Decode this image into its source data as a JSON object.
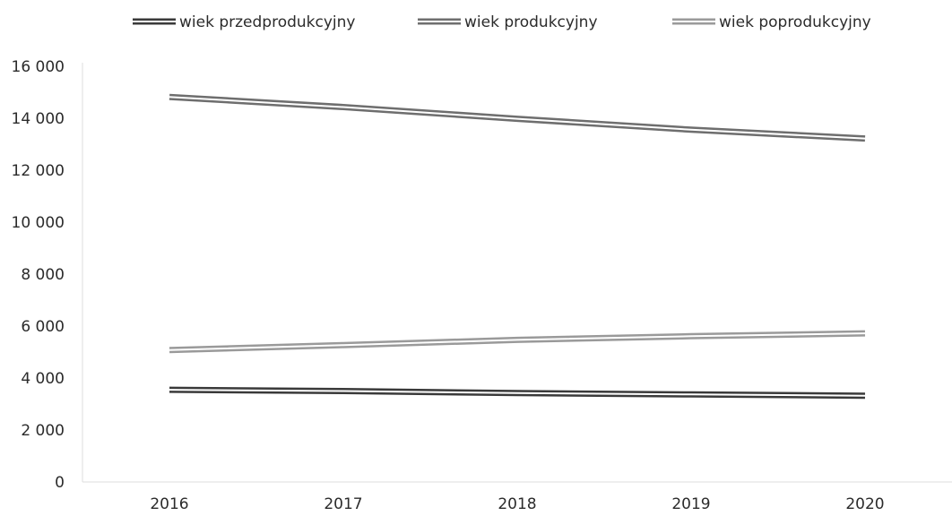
{
  "chart_data": {
    "type": "line",
    "title": "",
    "xlabel": "",
    "ylabel": "",
    "x": [
      "2016",
      "2017",
      "2018",
      "2019",
      "2020"
    ],
    "ylim": [
      0,
      16000
    ],
    "yticks": [
      "0",
      "2 000",
      "4 000",
      "6 000",
      "8 000",
      "10 000",
      "12 000",
      "14 000",
      "16 000"
    ],
    "grid": false,
    "legend_position": "top",
    "series": [
      {
        "name": "wiek przedprodukcyjny",
        "values": [
          3550,
          3500,
          3420,
          3370,
          3320
        ],
        "color": "#3a3a3a"
      },
      {
        "name": "wiek produkcyjny",
        "values": [
          14820,
          14430,
          13980,
          13560,
          13220
        ],
        "color": "#6e6e6e"
      },
      {
        "name": "wiek poprodukcyjny",
        "values": [
          5080,
          5270,
          5470,
          5610,
          5720
        ],
        "color": "#9a9a9a"
      }
    ]
  }
}
